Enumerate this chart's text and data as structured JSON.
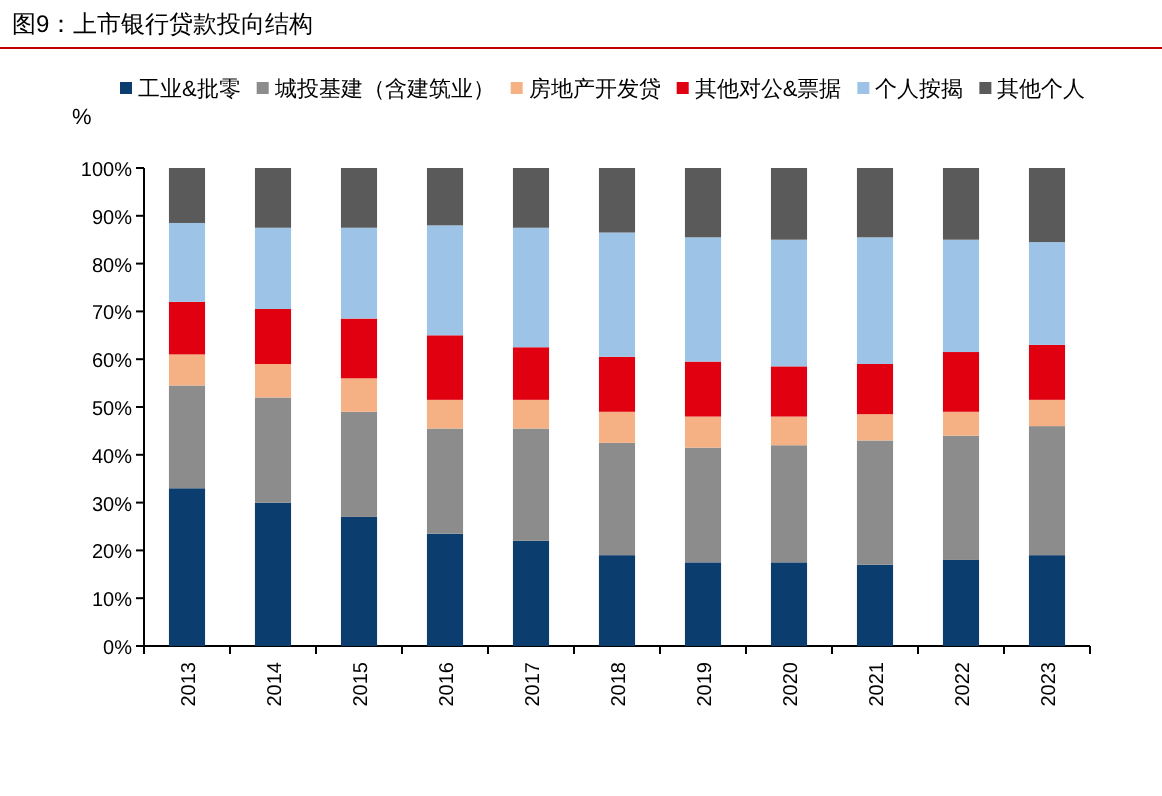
{
  "chart_data": {
    "type": "bar",
    "title": "图9：上市银行贷款投向结构",
    "ylabel": "%",
    "stacked": true,
    "legend": "top",
    "categories": [
      "2013",
      "2014",
      "2015",
      "2016",
      "2017",
      "2018",
      "2019",
      "2020",
      "2021",
      "2022",
      "2023"
    ],
    "ylim": [
      0,
      100
    ],
    "yticks": [
      {
        "value": 0,
        "label": "0%"
      },
      {
        "value": 10,
        "label": "10%"
      },
      {
        "value": 20,
        "label": "20%"
      },
      {
        "value": 30,
        "label": "30%"
      },
      {
        "value": 40,
        "label": "40%"
      },
      {
        "value": 50,
        "label": "50%"
      },
      {
        "value": 60,
        "label": "60%"
      },
      {
        "value": 70,
        "label": "70%"
      },
      {
        "value": 80,
        "label": "80%"
      },
      {
        "value": 90,
        "label": "90%"
      },
      {
        "value": 100,
        "label": "100%"
      }
    ],
    "series": [
      {
        "name": "工业&批零",
        "color": "#0b3d6e",
        "values": [
          33,
          30,
          27,
          23.5,
          22,
          19,
          17.5,
          17.5,
          17,
          18,
          19
        ]
      },
      {
        "name": "城投基建（含建筑业）",
        "color": "#8c8c8c",
        "values": [
          21.5,
          22,
          22,
          22,
          23.5,
          23.5,
          24,
          24.5,
          26,
          26,
          27
        ]
      },
      {
        "name": "房地产开发贷",
        "color": "#f5b183",
        "values": [
          6.5,
          7,
          7,
          6,
          6,
          6.5,
          6.5,
          6,
          5.5,
          5,
          5.5
        ]
      },
      {
        "name": "其他对公&票据",
        "color": "#e00010",
        "values": [
          11,
          11.5,
          12.5,
          13.5,
          11,
          11.5,
          11.5,
          10.5,
          10.5,
          12.5,
          11.5
        ]
      },
      {
        "name": "个人按揭",
        "color": "#9dc3e6",
        "values": [
          16.5,
          17,
          19,
          23,
          25,
          26,
          26,
          26.5,
          26.5,
          23.5,
          21.5
        ]
      },
      {
        "name": "其他个人",
        "color": "#5a5a5a",
        "values": [
          11.5,
          12.5,
          12.5,
          12,
          12.5,
          13.5,
          14.5,
          15,
          14.5,
          15,
          15.5
        ]
      }
    ]
  }
}
